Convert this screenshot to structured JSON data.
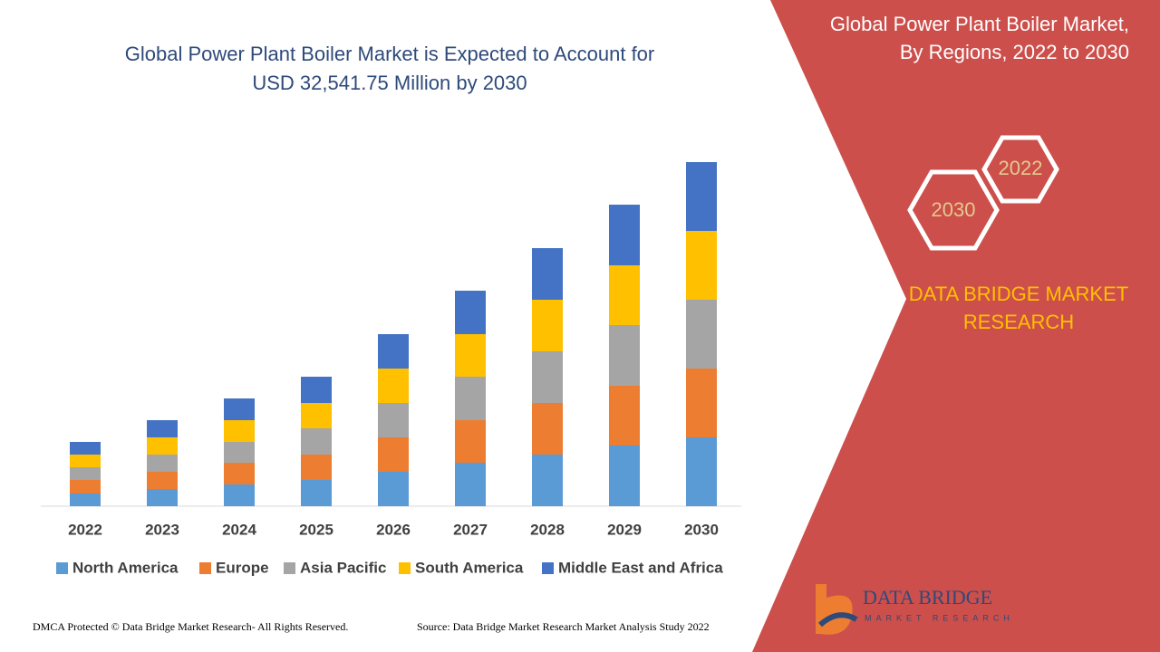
{
  "chart_data": {
    "type": "stacked-bar",
    "title": [
      "Global Power Plant Boiler Market is Expected to Account for",
      "USD 32,541.75 Million by 2030"
    ],
    "categories": [
      "2022",
      "2023",
      "2024",
      "2025",
      "2026",
      "2027",
      "2028",
      "2029",
      "2030"
    ],
    "series": [
      {
        "name": "North America",
        "color": "#5b9bd5",
        "values": [
          14,
          19,
          24,
          29,
          38,
          48,
          57,
          67,
          76
        ]
      },
      {
        "name": "Europe",
        "color": "#ed7d31",
        "values": [
          15,
          19,
          24,
          28,
          38,
          47,
          57,
          66,
          76
        ]
      },
      {
        "name": "Asia Pacific",
        "color": "#a5a5a5",
        "values": [
          14,
          19,
          23,
          29,
          38,
          48,
          57,
          67,
          76
        ]
      },
      {
        "name": "South America",
        "color": "#ffc000",
        "values": [
          14,
          19,
          24,
          28,
          38,
          47,
          57,
          66,
          76
        ]
      },
      {
        "name": "Middle East and Africa",
        "color": "#4472c4",
        "values": [
          14,
          19,
          24,
          29,
          38,
          48,
          57,
          67,
          76
        ]
      }
    ],
    "ylim": [
      0,
      380
    ],
    "legend": "bottom"
  },
  "panel": {
    "title": [
      "Global Power Plant Boiler Market,",
      "By Regions, 2022 to 2030"
    ],
    "hex_labels": [
      "2022",
      "2030"
    ],
    "brand": [
      "DATA BRIDGE MARKET",
      "RESEARCH"
    ],
    "logo": [
      "DATA BRIDGE",
      "MARKET RESEARCH"
    ]
  },
  "footer": {
    "left": "DMCA Protected © Data Bridge Market Research- All Rights Reserved.",
    "right": "Source: Data Bridge Market Research Market Analysis Study 2022"
  }
}
